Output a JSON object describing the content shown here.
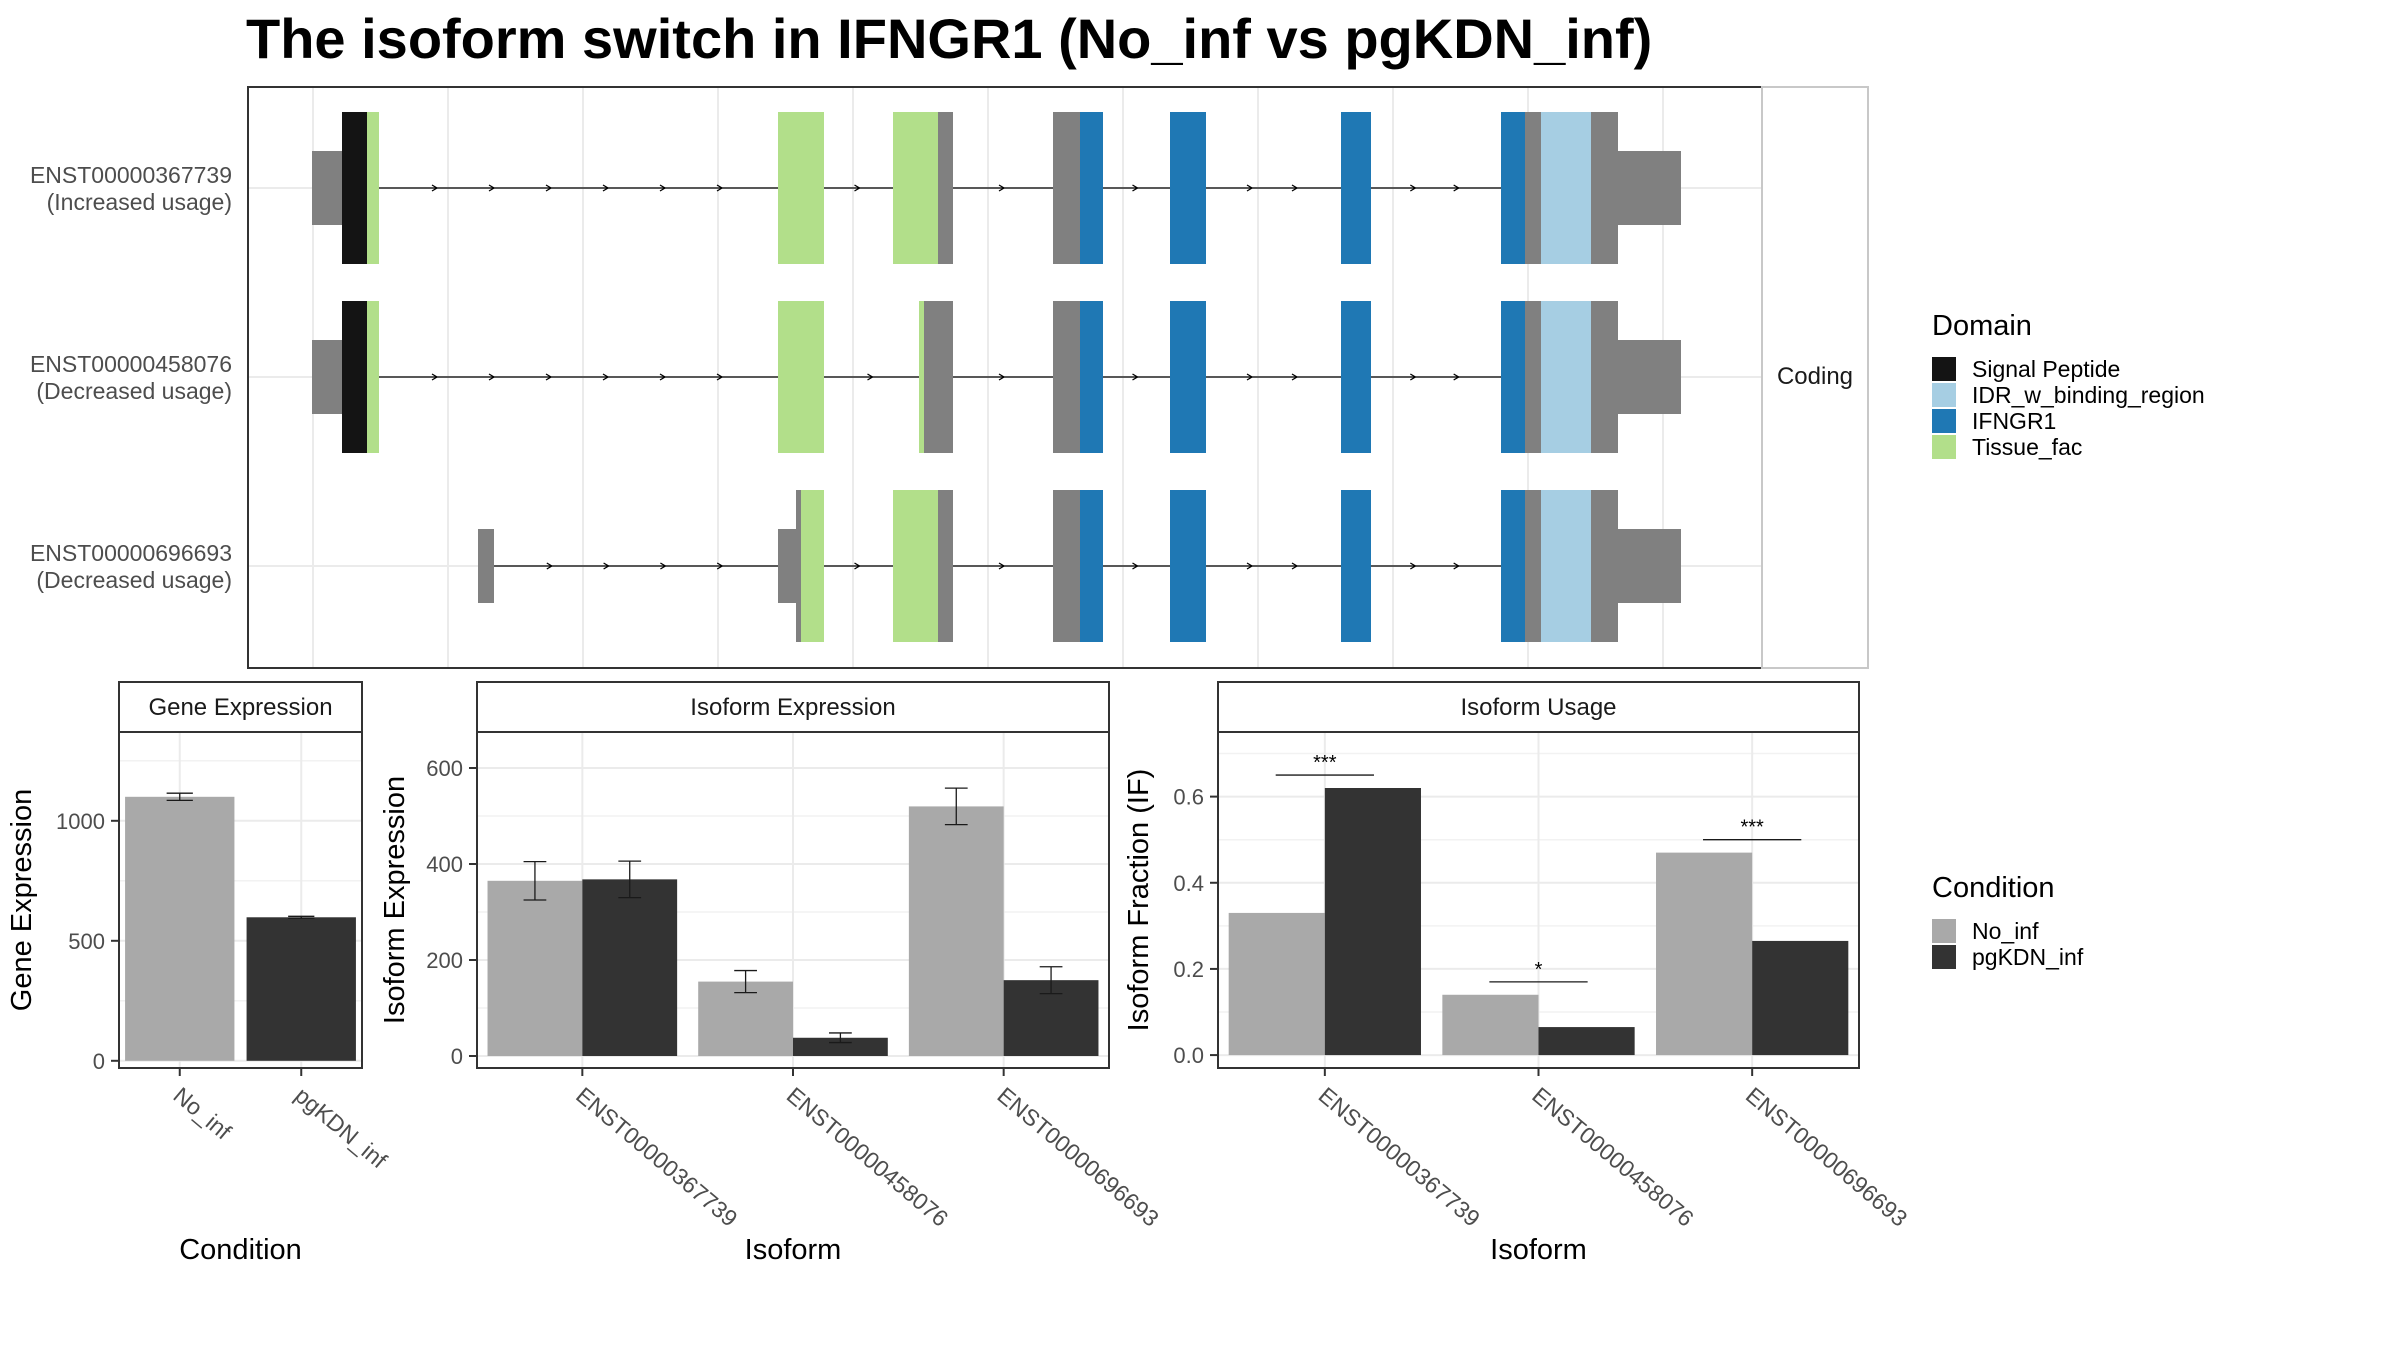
{
  "title": "The isoform switch in IFNGR1 (No_inf vs pgKDN_inf)",
  "colors": {
    "Signal Peptide": "#141414",
    "IDR_w_binding_region": "#A6CEE3",
    "IFNGR1": "#1F78B4",
    "Tissue_fac": "#B2DF8A",
    "utr": "#808080",
    "No_inf": "#A9A9A9",
    "pgKDN_inf": "#333333"
  },
  "chart_data": [
    {
      "type": "gene-structure",
      "facet_label": "Coding",
      "transcripts": [
        {
          "id": "ENST00000367739",
          "label": "(Increased usage)",
          "exons": [
            {
              "x0": 64,
              "x1": 94,
              "kind": "utr"
            },
            {
              "x0": 94,
              "x1": 131,
              "kind": "cds",
              "segments": [
                [
                  94,
                  119,
                  "Signal Peptide"
                ],
                [
                  119,
                  131,
                  "Tissue_fac"
                ]
              ]
            },
            {
              "x0": 530,
              "x1": 576,
              "kind": "cds",
              "segments": [
                [
                  530,
                  576,
                  "Tissue_fac"
                ]
              ]
            },
            {
              "x0": 645,
              "x1": 705,
              "kind": "cds",
              "segments": [
                [
                  645,
                  690,
                  "Tissue_fac"
                ],
                [
                  690,
                  705,
                  "utr"
                ]
              ]
            },
            {
              "x0": 805,
              "x1": 855,
              "kind": "cds",
              "segments": [
                [
                  805,
                  832,
                  "utr"
                ],
                [
                  832,
                  855,
                  "IFNGR1"
                ]
              ]
            },
            {
              "x0": 922,
              "x1": 958,
              "kind": "cds",
              "segments": [
                [
                  922,
                  958,
                  "IFNGR1"
                ]
              ]
            },
            {
              "x0": 1093,
              "x1": 1123,
              "kind": "cds",
              "segments": [
                [
                  1093,
                  1123,
                  "IFNGR1"
                ]
              ]
            },
            {
              "x0": 1253,
              "x1": 1370,
              "kind": "cds",
              "segments": [
                [
                  1253,
                  1277,
                  "IFNGR1"
                ],
                [
                  1277,
                  1293,
                  "utr"
                ],
                [
                  1293,
                  1343,
                  "IDR_w_binding_region"
                ],
                [
                  1343,
                  1370,
                  "utr"
                ]
              ]
            },
            {
              "x0": 1370,
              "x1": 1433,
              "kind": "utr"
            }
          ]
        },
        {
          "id": "ENST00000458076",
          "label": "(Decreased usage)",
          "exons": [
            {
              "x0": 64,
              "x1": 94,
              "kind": "utr"
            },
            {
              "x0": 94,
              "x1": 131,
              "kind": "cds",
              "segments": [
                [
                  94,
                  119,
                  "Signal Peptide"
                ],
                [
                  119,
                  131,
                  "Tissue_fac"
                ]
              ]
            },
            {
              "x0": 530,
              "x1": 576,
              "kind": "cds",
              "segments": [
                [
                  530,
                  576,
                  "Tissue_fac"
                ]
              ]
            },
            {
              "x0": 671,
              "x1": 705,
              "kind": "cds",
              "segments": [
                [
                  671,
                  676,
                  "Tissue_fac"
                ],
                [
                  676,
                  705,
                  "utr"
                ]
              ]
            },
            {
              "x0": 805,
              "x1": 855,
              "kind": "cds",
              "segments": [
                [
                  805,
                  832,
                  "utr"
                ],
                [
                  832,
                  855,
                  "IFNGR1"
                ]
              ]
            },
            {
              "x0": 922,
              "x1": 958,
              "kind": "cds",
              "segments": [
                [
                  922,
                  958,
                  "IFNGR1"
                ]
              ]
            },
            {
              "x0": 1093,
              "x1": 1123,
              "kind": "cds",
              "segments": [
                [
                  1093,
                  1123,
                  "IFNGR1"
                ]
              ]
            },
            {
              "x0": 1253,
              "x1": 1370,
              "kind": "cds",
              "segments": [
                [
                  1253,
                  1277,
                  "IFNGR1"
                ],
                [
                  1277,
                  1293,
                  "utr"
                ],
                [
                  1293,
                  1343,
                  "IDR_w_binding_region"
                ],
                [
                  1343,
                  1370,
                  "utr"
                ]
              ]
            },
            {
              "x0": 1370,
              "x1": 1433,
              "kind": "utr"
            }
          ]
        },
        {
          "id": "ENST00000696693",
          "label": "(Decreased usage)",
          "exons": [
            {
              "x0": 230,
              "x1": 246,
              "kind": "utr"
            },
            {
              "x0": 530,
              "x1": 548,
              "kind": "utr"
            },
            {
              "x0": 548,
              "x1": 576,
              "kind": "cds",
              "segments": [
                [
                  548,
                  553,
                  "utr"
                ],
                [
                  553,
                  576,
                  "Tissue_fac"
                ]
              ]
            },
            {
              "x0": 645,
              "x1": 705,
              "kind": "cds",
              "segments": [
                [
                  645,
                  690,
                  "Tissue_fac"
                ],
                [
                  690,
                  705,
                  "utr"
                ]
              ]
            },
            {
              "x0": 805,
              "x1": 855,
              "kind": "cds",
              "segments": [
                [
                  805,
                  832,
                  "utr"
                ],
                [
                  832,
                  855,
                  "IFNGR1"
                ]
              ]
            },
            {
              "x0": 922,
              "x1": 958,
              "kind": "cds",
              "segments": [
                [
                  922,
                  958,
                  "IFNGR1"
                ]
              ]
            },
            {
              "x0": 1093,
              "x1": 1123,
              "kind": "cds",
              "segments": [
                [
                  1093,
                  1123,
                  "IFNGR1"
                ]
              ]
            },
            {
              "x0": 1253,
              "x1": 1370,
              "kind": "cds",
              "segments": [
                [
                  1253,
                  1277,
                  "IFNGR1"
                ],
                [
                  1277,
                  1293,
                  "utr"
                ],
                [
                  1293,
                  1343,
                  "IDR_w_binding_region"
                ],
                [
                  1343,
                  1370,
                  "utr"
                ]
              ]
            },
            {
              "x0": 1370,
              "x1": 1433,
              "kind": "utr"
            }
          ]
        }
      ]
    },
    {
      "type": "bar",
      "facet_label": "Gene Expression",
      "xlabel": "Condition",
      "ylabel": "Gene Expression",
      "categories": [
        "No_inf",
        "pgKDN_inf"
      ],
      "values": [
        1100,
        598
      ],
      "errors": [
        [
          1085,
          1115
        ],
        [
          594,
          602
        ]
      ],
      "ylim": [
        -30,
        1370
      ],
      "yticks": [
        0,
        500,
        1000
      ]
    },
    {
      "type": "bar",
      "facet_label": "Isoform Expression",
      "xlabel": "Isoform",
      "ylabel": "Isoform Expression",
      "categories": [
        "ENST00000367739",
        "ENST00000458076",
        "ENST00000696693"
      ],
      "series": [
        {
          "name": "No_inf",
          "values": [
            365,
            155,
            520
          ],
          "errors": [
            [
              325,
              405
            ],
            [
              132,
              178
            ],
            [
              482,
              558
            ]
          ]
        },
        {
          "name": "pgKDN_inf",
          "values": [
            368,
            38,
            158
          ],
          "errors": [
            [
              330,
              406
            ],
            [
              28,
              48
            ],
            [
              130,
              186
            ]
          ]
        }
      ],
      "ylim": [
        -25,
        675
      ],
      "yticks": [
        0,
        200,
        400,
        600
      ]
    },
    {
      "type": "bar",
      "facet_label": "Isoform Usage",
      "xlabel": "Isoform",
      "ylabel": "Isoform Fraction (IF)",
      "categories": [
        "ENST00000367739",
        "ENST00000458076",
        "ENST00000696693"
      ],
      "series": [
        {
          "name": "No_inf",
          "values": [
            0.33,
            0.14,
            0.47
          ]
        },
        {
          "name": "pgKDN_inf",
          "values": [
            0.62,
            0.065,
            0.265
          ]
        }
      ],
      "significance": [
        "***",
        "*",
        "***"
      ],
      "significance_y": [
        0.65,
        0.17,
        0.5
      ],
      "ylim": [
        -0.03,
        0.75
      ],
      "yticks": [
        0.0,
        0.2,
        0.4,
        0.6
      ],
      "ytick_labels": [
        "0.0",
        "0.2",
        "0.4",
        "0.6"
      ]
    }
  ],
  "legends": {
    "domain": {
      "title": "Domain",
      "items": [
        "Signal Peptide",
        "IDR_w_binding_region",
        "IFNGR1",
        "Tissue_fac"
      ]
    },
    "condition": {
      "title": "Condition",
      "items": [
        "No_inf",
        "pgKDN_inf"
      ]
    }
  }
}
